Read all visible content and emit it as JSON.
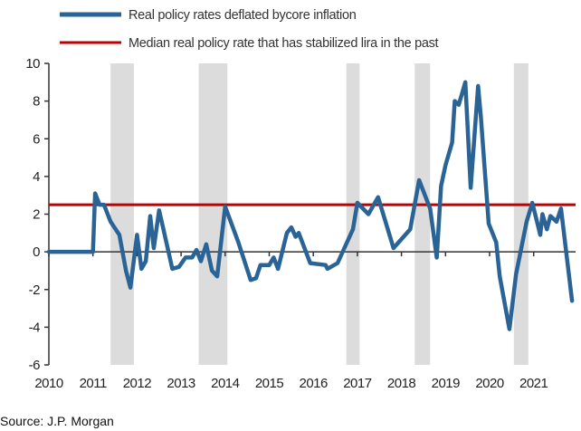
{
  "chart_data": {
    "type": "line",
    "title": "",
    "xlabel": "",
    "ylabel": "",
    "xlim": [
      2010,
      2022
    ],
    "ylim": [
      -6,
      10
    ],
    "yticks": [
      10,
      8,
      6,
      4,
      2,
      0,
      -2,
      -4,
      -6
    ],
    "xticks": [
      "2010",
      "2011",
      "2012",
      "2013",
      "2014",
      "2015",
      "2016",
      "2017",
      "2018",
      "2019",
      "2020",
      "2021"
    ],
    "legend_position": "top",
    "colors": {
      "series": "#2a6496",
      "median": "#c00000",
      "shade": "#dcdcdc"
    },
    "shaded_periods": [
      [
        2011.4,
        2011.93
      ],
      [
        2013.4,
        2014.05
      ],
      [
        2016.75,
        2017.05
      ],
      [
        2018.3,
        2018.65
      ],
      [
        2020.55,
        2020.88
      ]
    ],
    "series": [
      {
        "name": "Real policy rates deflated bycore inflation",
        "x": [
          2010.0,
          2011.0,
          2011.05,
          2011.15,
          2011.25,
          2011.4,
          2011.6,
          2011.75,
          2011.85,
          2012.0,
          2012.1,
          2012.2,
          2012.3,
          2012.38,
          2012.5,
          2012.6,
          2012.8,
          2012.95,
          2013.1,
          2013.25,
          2013.35,
          2013.45,
          2013.57,
          2013.7,
          2013.82,
          2014.0,
          2014.3,
          2014.58,
          2014.7,
          2014.8,
          2015.0,
          2015.1,
          2015.2,
          2015.4,
          2015.5,
          2015.6,
          2015.67,
          2015.93,
          2016.28,
          2016.32,
          2016.55,
          2016.9,
          2017.0,
          2017.25,
          2017.47,
          2017.82,
          2018.2,
          2018.4,
          2018.65,
          2018.8,
          2018.9,
          2019.0,
          2019.15,
          2019.21,
          2019.3,
          2019.45,
          2019.57,
          2019.74,
          2019.8,
          2019.98,
          2020.15,
          2020.23,
          2020.45,
          2020.6,
          2020.84,
          2020.97,
          2021.15,
          2021.2,
          2021.3,
          2021.38,
          2021.52,
          2021.62,
          2021.87
        ],
        "y": [
          0,
          0,
          3.1,
          2.5,
          2.5,
          1.6,
          0.9,
          -1.0,
          -1.9,
          0.9,
          -0.9,
          -0.5,
          1.9,
          0.2,
          2.2,
          1.2,
          -0.9,
          -0.8,
          -0.3,
          -0.3,
          0.1,
          -0.5,
          0.4,
          -1.0,
          -1.3,
          2.4,
          0.5,
          -1.5,
          -1.4,
          -0.7,
          -0.7,
          -0.3,
          -0.9,
          1.0,
          1.3,
          0.8,
          1.0,
          -0.6,
          -0.7,
          -0.9,
          -0.6,
          1.2,
          2.6,
          2.0,
          2.9,
          0.2,
          1.2,
          3.8,
          2.3,
          -0.3,
          3.5,
          4.6,
          5.8,
          8.0,
          7.8,
          9.0,
          3.4,
          8.8,
          7.2,
          1.5,
          0.5,
          -1.3,
          -4.1,
          -1.2,
          1.6,
          2.6,
          0.9,
          2.0,
          1.2,
          1.9,
          1.6,
          2.3,
          -2.6
        ]
      },
      {
        "name": "Median real policy rate that has stabilized lira in the past",
        "value": 2.5
      }
    ],
    "source": "Source:  J.P. Morgan"
  }
}
